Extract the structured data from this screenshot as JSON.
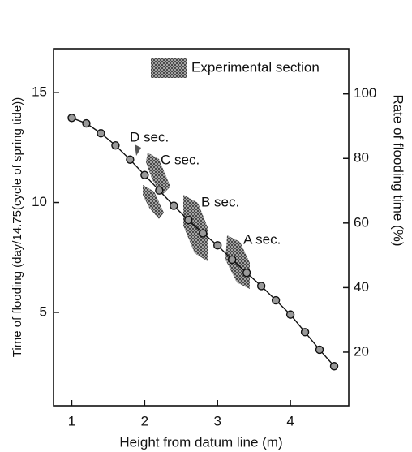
{
  "chart_data": {
    "type": "line",
    "x_label": "Height from datum line (m)",
    "y_label": "Time of flooding (day/14.75(cycle of spring tide))",
    "y2_label": "Rate of flooding time (%)",
    "legend_label": "Experimental section",
    "annotations": [
      "D sec.",
      "C sec.",
      "B sec.",
      "A sec."
    ],
    "x": [
      1.0,
      1.2,
      1.4,
      1.6,
      1.8,
      2.0,
      2.2,
      2.4,
      2.6,
      2.8,
      3.0,
      3.2,
      3.4,
      3.6,
      3.8,
      4.0,
      4.2,
      4.4,
      4.6
    ],
    "series": [
      {
        "color": "#111111",
        "values": [
          13.85,
          13.6,
          13.15,
          12.6,
          11.95,
          11.25,
          10.55,
          9.85,
          9.2,
          8.6,
          8.05,
          7.4,
          6.8,
          6.2,
          5.55,
          4.9,
          4.1,
          3.3,
          2.55
        ]
      }
    ],
    "xlim": [
      0.75,
      4.8
    ],
    "xticks": [
      1,
      2,
      3,
      4
    ],
    "ylim": [
      0.75,
      17
    ],
    "yticks": [
      5,
      10,
      15
    ],
    "y2lim": [
      3.4,
      114
    ],
    "y2ticks": [
      20,
      40,
      60,
      80,
      100
    ],
    "grid": false
  }
}
